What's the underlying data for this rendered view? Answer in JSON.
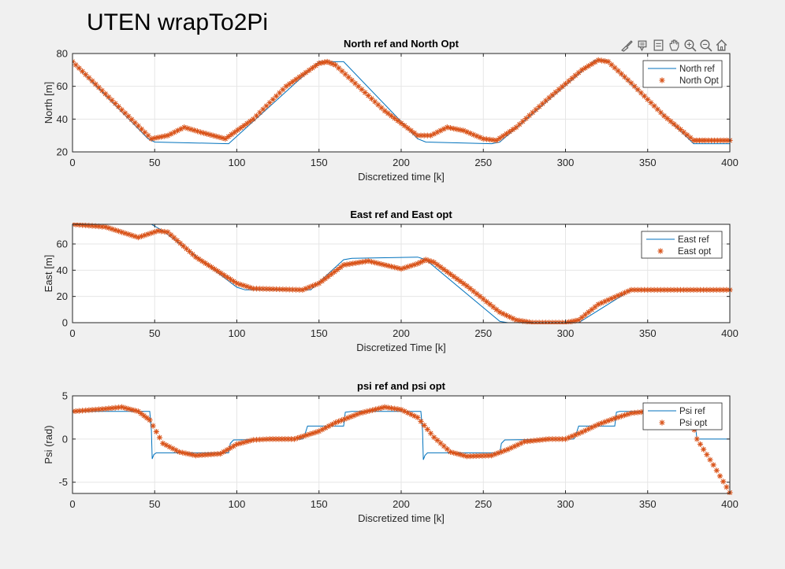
{
  "window": {
    "title": "UTEN wrapTo2Pi"
  },
  "toolbar": {
    "icons": [
      "brush-icon",
      "data-tips-icon",
      "export-icon",
      "pan-icon",
      "zoom-in-icon",
      "zoom-out-icon",
      "home-icon"
    ]
  },
  "colors": {
    "ref": "#0072bd",
    "opt": "#d95319",
    "grid": "#e6e6e6",
    "axes_bg": "#ffffff",
    "figure_bg": "#f0f0f0"
  },
  "chart_data": [
    {
      "type": "line",
      "title": "North ref and North Opt",
      "xlabel": "Discretized time [k]",
      "ylabel": "North [m]",
      "xlim": [
        0,
        400
      ],
      "ylim": [
        20,
        80
      ],
      "xticks": [
        "0",
        "50",
        "100",
        "150",
        "200",
        "250",
        "300",
        "350",
        "400"
      ],
      "yticks": [
        "20",
        "40",
        "60",
        "80"
      ],
      "grid": true,
      "legend_position": "top-right",
      "series": [
        {
          "name": "North ref",
          "style": "line",
          "x": [
            0,
            46,
            50,
            95,
            150,
            165,
            210,
            215,
            255,
            260,
            318,
            325,
            378,
            400
          ],
          "y": [
            75,
            28,
            26,
            25,
            75,
            75,
            28,
            26,
            25,
            26,
            76,
            76,
            25,
            25
          ]
        },
        {
          "name": "North Opt",
          "style": "star",
          "x": [
            0,
            48,
            58,
            68,
            78,
            93,
            110,
            130,
            150,
            155,
            160,
            190,
            210,
            218,
            228,
            238,
            250,
            258,
            270,
            290,
            310,
            320,
            326,
            340,
            360,
            378,
            385,
            400
          ],
          "y": [
            75,
            28,
            30,
            35,
            32,
            28,
            40,
            60,
            74,
            75,
            73,
            45,
            30,
            30,
            35,
            33,
            28,
            27,
            35,
            53,
            70,
            76,
            75,
            62,
            42,
            27,
            27,
            27
          ]
        }
      ]
    },
    {
      "type": "line",
      "title": "East ref and East opt",
      "xlabel": "Discretized Time [k]",
      "ylabel": "East [m]",
      "xlim": [
        0,
        400
      ],
      "ylim": [
        0,
        75
      ],
      "xticks": [
        "0",
        "50",
        "100",
        "150",
        "200",
        "250",
        "300",
        "350",
        "400"
      ],
      "yticks": [
        "0",
        "20",
        "40",
        "60"
      ],
      "grid": true,
      "legend_position": "top-right",
      "series": [
        {
          "name": "East ref",
          "style": "line",
          "x": [
            0,
            48,
            55,
            100,
            105,
            145,
            165,
            170,
            210,
            215,
            260,
            265,
            300,
            308,
            340,
            400
          ],
          "y": [
            75,
            75,
            70,
            27,
            25,
            25,
            48,
            49,
            50,
            48,
            1,
            0,
            0,
            0,
            25,
            25
          ]
        },
        {
          "name": "East opt",
          "style": "star",
          "x": [
            0,
            20,
            40,
            52,
            58,
            75,
            100,
            110,
            140,
            150,
            165,
            180,
            200,
            210,
            215,
            220,
            240,
            260,
            270,
            280,
            300,
            308,
            320,
            340,
            400
          ],
          "y": [
            75,
            73,
            65,
            70,
            69,
            50,
            30,
            26,
            25,
            30,
            44,
            47,
            41,
            45,
            48,
            46,
            28,
            8,
            2,
            0,
            0,
            2,
            14,
            25,
            25
          ]
        }
      ]
    },
    {
      "type": "line",
      "title": "psi ref and psi opt",
      "xlabel": "Discretized time [k]",
      "ylabel": "Psi (rad)",
      "xlim": [
        0,
        400
      ],
      "ylim": [
        -6.3,
        5
      ],
      "xticks": [
        "0",
        "50",
        "100",
        "150",
        "200",
        "250",
        "300",
        "350",
        "400"
      ],
      "yticks": [
        "-5",
        "0",
        "5"
      ],
      "grid": true,
      "legend_position": "top-right",
      "series": [
        {
          "name": "Psi ref",
          "style": "line",
          "x": [
            0,
            47,
            48,
            48.5,
            49.5,
            51,
            95,
            96,
            98,
            140,
            141,
            143,
            165,
            166,
            170,
            212,
            213,
            213.5,
            214.5,
            216,
            260,
            261,
            263,
            305,
            306,
            308,
            330,
            331,
            333,
            378,
            380,
            400
          ],
          "y": [
            3.2,
            3.2,
            1,
            -2.3,
            -1.8,
            -1.6,
            -1.6,
            -0.5,
            -0.1,
            0,
            0.3,
            1.5,
            1.5,
            3.1,
            3.2,
            3.2,
            1,
            -2.4,
            -1.9,
            -1.6,
            -1.6,
            -0.5,
            -0.1,
            0,
            0.3,
            1.5,
            1.5,
            3.1,
            3.2,
            3.2,
            0,
            0
          ]
        },
        {
          "name": "Psi opt",
          "style": "star",
          "x": [
            0,
            20,
            30,
            40,
            47,
            55,
            65,
            75,
            90,
            100,
            110,
            120,
            135,
            150,
            160,
            175,
            190,
            200,
            210,
            220,
            230,
            240,
            255,
            265,
            275,
            290,
            300,
            310,
            320,
            330,
            340,
            350,
            360,
            365,
            375,
            380,
            390,
            400
          ],
          "y": [
            3.2,
            3.5,
            3.7,
            3.2,
            2.2,
            -0.5,
            -1.5,
            -1.9,
            -1.7,
            -0.6,
            -0.1,
            0,
            0,
            0.9,
            1.9,
            3,
            3.7,
            3.4,
            2.5,
            0.2,
            -1.5,
            -2,
            -1.9,
            -1.2,
            -0.3,
            0,
            0,
            0.8,
            1.7,
            2.4,
            3,
            3.2,
            3.2,
            3.2,
            3.2,
            0,
            -3,
            -6.2
          ]
        }
      ]
    }
  ]
}
